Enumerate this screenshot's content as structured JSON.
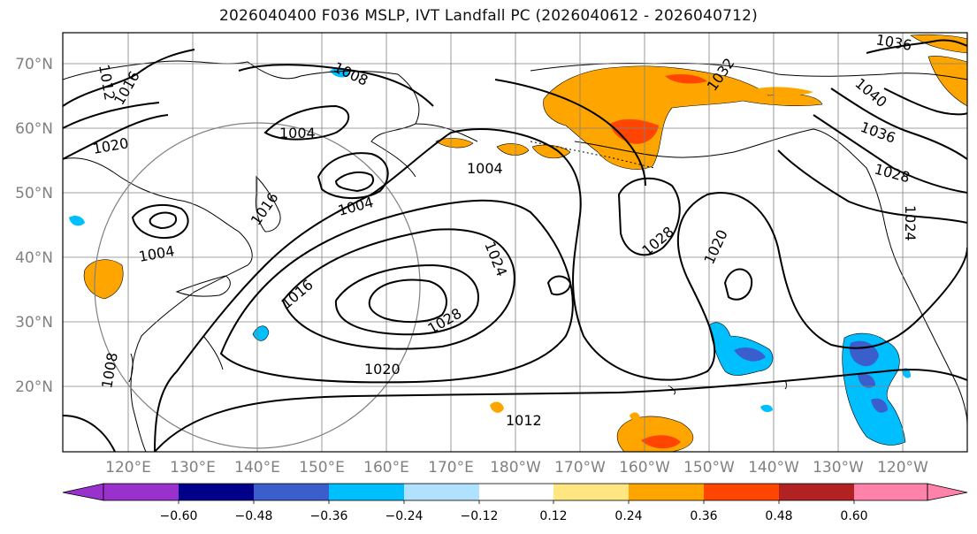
{
  "title": "2026040400 F036 MSLP, IVT Landfall PC (2026040612 - 2026040712)",
  "map": {
    "lat_labels": [
      "70°N",
      "60°N",
      "50°N",
      "40°N",
      "30°N",
      "20°N"
    ],
    "lon_labels": [
      "120°E",
      "130°E",
      "140°E",
      "150°E",
      "160°E",
      "170°E",
      "180°W",
      "170°W",
      "160°W",
      "150°W",
      "140°W",
      "130°W",
      "120°W"
    ],
    "contour_labels": [
      "1012",
      "1016",
      "1020",
      "1004",
      "1008",
      "1004",
      "1004",
      "1004",
      "1016",
      "1004",
      "1016",
      "1024",
      "1028",
      "1020",
      "1028",
      "1020",
      "1012",
      "1032",
      "1040",
      "1036",
      "1028",
      "1024",
      "1036",
      "1008"
    ]
  },
  "colorbar": {
    "colors": [
      "#9932cc",
      "#00008b",
      "#3a5fcd",
      "#00bfff",
      "#b0e2ff",
      "#ffffff",
      "#ffff0080",
      "#ffa500",
      "#ff4500",
      "#b22222",
      "#ff82ab"
    ],
    "under_color": "#9932cc",
    "over_color": "#ff82ab",
    "ticks": [
      "−0.60",
      "−0.48",
      "−0.36",
      "−0.24",
      "−0.12",
      "0.12",
      "0.24",
      "0.36",
      "0.48",
      "0.60"
    ]
  }
}
